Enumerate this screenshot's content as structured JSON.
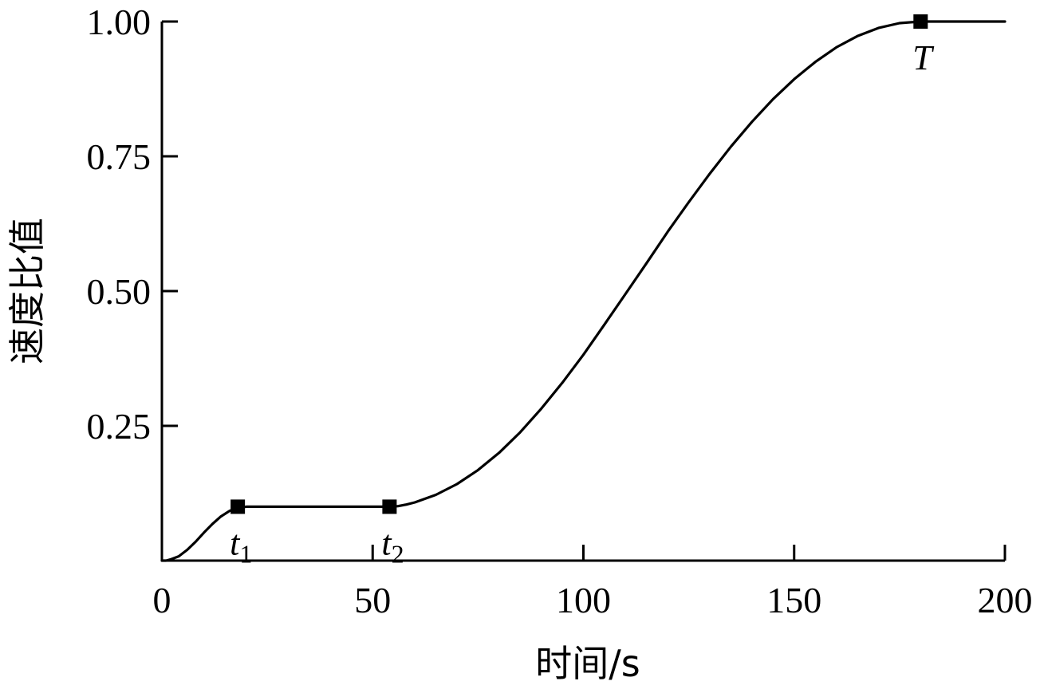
{
  "chart_data": {
    "type": "line",
    "title": "",
    "xlabel": "时间/s",
    "ylabel": "速度比值",
    "xlim": [
      0,
      200
    ],
    "ylim": [
      0,
      1.0
    ],
    "x_ticks": [
      0,
      50,
      100,
      150,
      200
    ],
    "x_tick_labels": [
      "0",
      "50",
      "100",
      "150",
      "200"
    ],
    "y_ticks": [
      0.25,
      0.5,
      0.75,
      1.0
    ],
    "y_tick_labels": [
      "0.25",
      "0.50",
      "0.75",
      "1.00"
    ],
    "grid": false,
    "series": [
      {
        "x": [
          0,
          1,
          2,
          4,
          6,
          8,
          10,
          12,
          14,
          16,
          18,
          20,
          24,
          30,
          36,
          42,
          48,
          54,
          56,
          58,
          60,
          65,
          70,
          75,
          80,
          85,
          90,
          95,
          100,
          105,
          110,
          115,
          120,
          125,
          130,
          135,
          140,
          145,
          150,
          155,
          160,
          165,
          170,
          175,
          180,
          185,
          190,
          195,
          200
        ],
        "y": [
          0,
          0,
          0.002,
          0.008,
          0.02,
          0.035,
          0.052,
          0.068,
          0.082,
          0.092,
          0.098,
          0.1,
          0.1,
          0.1,
          0.1,
          0.1,
          0.1,
          0.1,
          0.101,
          0.104,
          0.108,
          0.122,
          0.142,
          0.168,
          0.2,
          0.238,
          0.282,
          0.33,
          0.382,
          0.438,
          0.495,
          0.552,
          0.61,
          0.665,
          0.718,
          0.768,
          0.814,
          0.856,
          0.893,
          0.925,
          0.952,
          0.973,
          0.988,
          0.997,
          1.0,
          1.0,
          1.0,
          1.0,
          1.0
        ]
      }
    ],
    "markers": [
      {
        "x": 18,
        "y": 0.1,
        "label": "t",
        "subscript": "1"
      },
      {
        "x": 54,
        "y": 0.1,
        "label": "t",
        "subscript": "2"
      },
      {
        "x": 180,
        "y": 1.0,
        "label": "T",
        "subscript": ""
      }
    ]
  }
}
